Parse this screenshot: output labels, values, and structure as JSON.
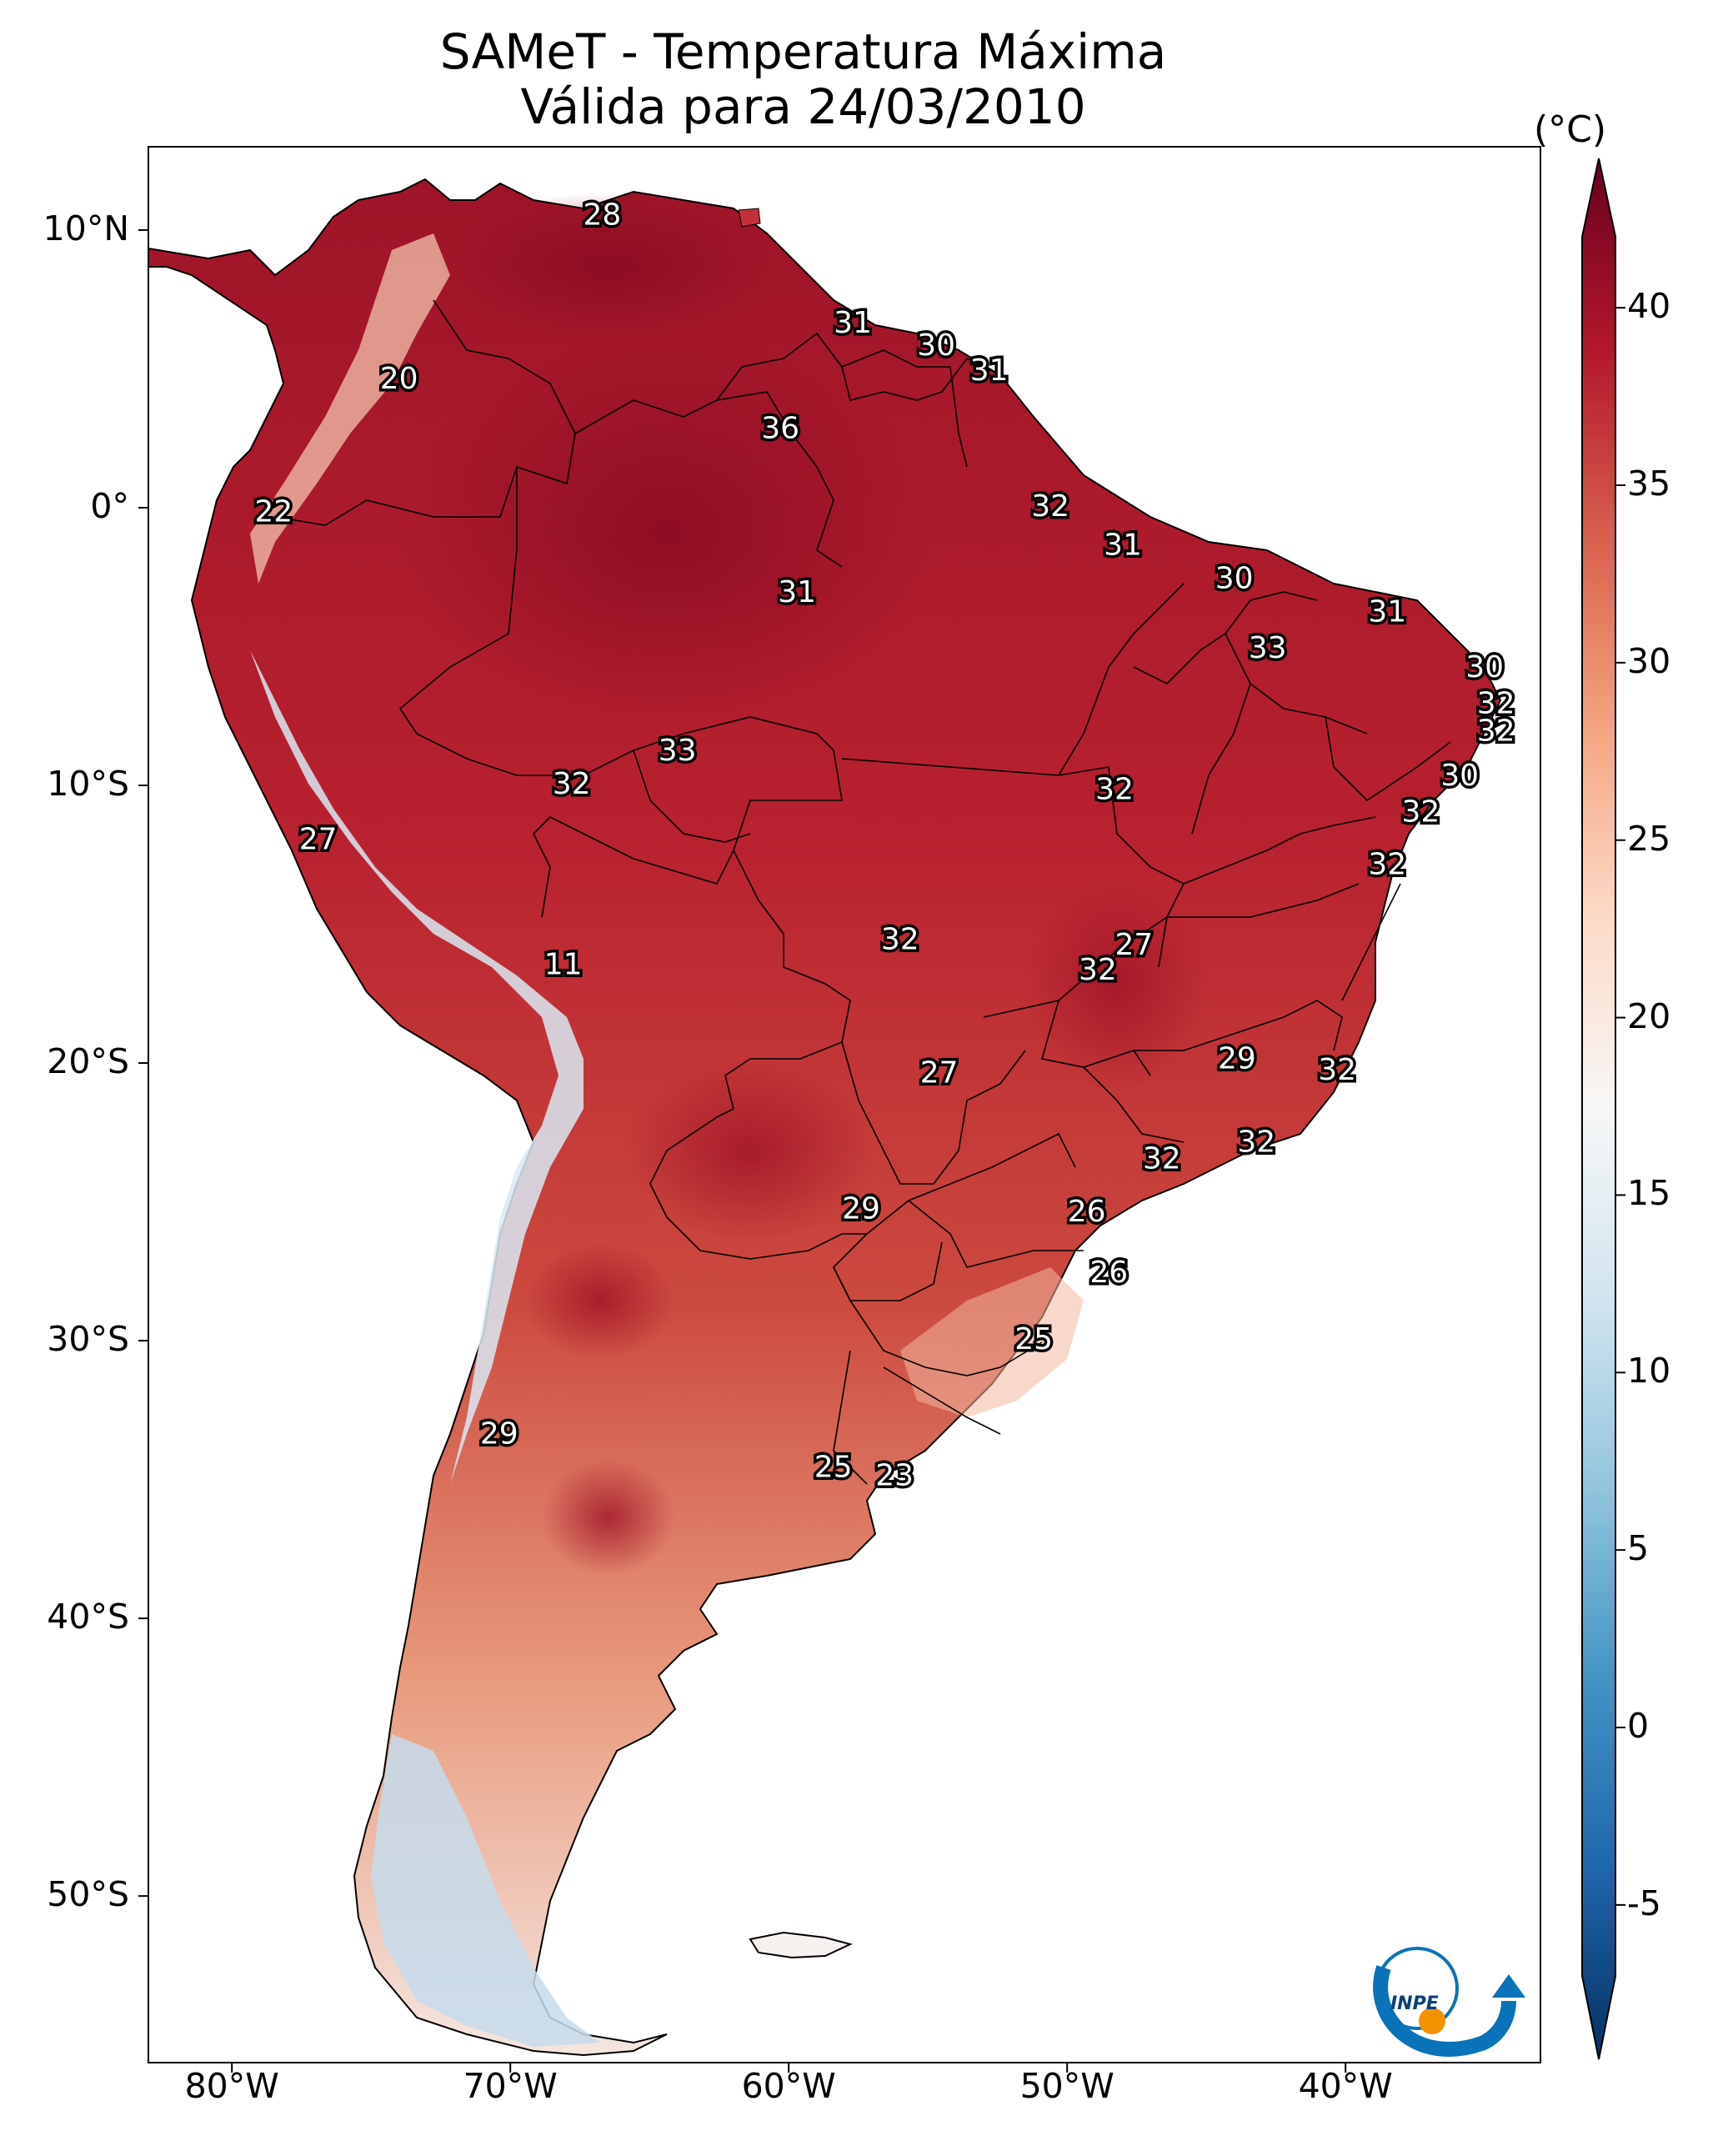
{
  "title": {
    "line1": "SAMeT - Temperatura Máxima",
    "line2": "Válida para 24/03/2010"
  },
  "map": {
    "lat_ticks": [
      "10°N",
      "0°",
      "10°S",
      "20°S",
      "30°S",
      "40°S",
      "50°S"
    ],
    "lon_ticks": [
      "80°W",
      "70°W",
      "60°W",
      "50°W",
      "40°W"
    ],
    "extent": {
      "lon_min": -83,
      "lon_max": -33,
      "lat_min": -56,
      "lat_max": 13
    },
    "station_labels": [
      {
        "text": "28",
        "lon": -66.7,
        "lat": 10.5
      },
      {
        "text": "31",
        "lon": -57.7,
        "lat": 6.6
      },
      {
        "text": "30",
        "lon": -54.7,
        "lat": 5.8
      },
      {
        "text": "31",
        "lon": -52.8,
        "lat": 4.9
      },
      {
        "text": "20",
        "lon": -74.0,
        "lat": 4.6
      },
      {
        "text": "36",
        "lon": -60.3,
        "lat": 2.8
      },
      {
        "text": "32",
        "lon": -50.6,
        "lat": 0.0
      },
      {
        "text": "22",
        "lon": -78.5,
        "lat": -0.2
      },
      {
        "text": "31",
        "lon": -48.0,
        "lat": -1.4
      },
      {
        "text": "30",
        "lon": -44.0,
        "lat": -2.6
      },
      {
        "text": "31",
        "lon": -59.7,
        "lat": -3.1
      },
      {
        "text": "31",
        "lon": -38.5,
        "lat": -3.8
      },
      {
        "text": "33",
        "lon": -42.8,
        "lat": -5.1
      },
      {
        "text": "30",
        "lon": -35.0,
        "lat": -5.8
      },
      {
        "text": "32",
        "lon": -34.6,
        "lat": -7.1
      },
      {
        "text": "32",
        "lon": -34.6,
        "lat": -8.1
      },
      {
        "text": "33",
        "lon": -64.0,
        "lat": -8.8
      },
      {
        "text": "30",
        "lon": -35.9,
        "lat": -9.7
      },
      {
        "text": "32",
        "lon": -67.8,
        "lat": -10.0
      },
      {
        "text": "32",
        "lon": -48.3,
        "lat": -10.2
      },
      {
        "text": "32",
        "lon": -37.3,
        "lat": -11.0
      },
      {
        "text": "27",
        "lon": -76.9,
        "lat": -12.0
      },
      {
        "text": "32",
        "lon": -38.5,
        "lat": -12.9
      },
      {
        "text": "27",
        "lon": -47.6,
        "lat": -15.8
      },
      {
        "text": "32",
        "lon": -56.0,
        "lat": -15.6
      },
      {
        "text": "32",
        "lon": -48.9,
        "lat": -16.7
      },
      {
        "text": "11",
        "lon": -68.1,
        "lat": -16.5
      },
      {
        "text": "29",
        "lon": -43.9,
        "lat": -19.9
      },
      {
        "text": "32",
        "lon": -40.3,
        "lat": -20.3
      },
      {
        "text": "27",
        "lon": -54.6,
        "lat": -20.4
      },
      {
        "text": "32",
        "lon": -43.2,
        "lat": -22.9
      },
      {
        "text": "32",
        "lon": -46.6,
        "lat": -23.5
      },
      {
        "text": "29",
        "lon": -57.4,
        "lat": -25.3
      },
      {
        "text": "26",
        "lon": -49.3,
        "lat": -25.4
      },
      {
        "text": "26",
        "lon": -48.5,
        "lat": -27.6
      },
      {
        "text": "25",
        "lon": -51.2,
        "lat": -30.0
      },
      {
        "text": "29",
        "lon": -70.4,
        "lat": -33.4
      },
      {
        "text": "25",
        "lon": -58.4,
        "lat": -34.6
      },
      {
        "text": "23",
        "lon": -56.2,
        "lat": -34.9
      }
    ]
  },
  "colorbar": {
    "unit": "(°C)",
    "ticks": [
      "40",
      "35",
      "30",
      "25",
      "20",
      "15",
      "10",
      "5",
      "0",
      "-5"
    ],
    "min": -7,
    "max": 42,
    "stops": [
      "#053061",
      "#2166ac",
      "#4393c3",
      "#92c5de",
      "#d1e5f0",
      "#f7f7f7",
      "#fddbc7",
      "#f4a582",
      "#d6604d",
      "#b2182b",
      "#67001f"
    ]
  },
  "logo": {
    "text": "INPE",
    "accent_color": "#f39200",
    "main_color": "#0a72b8"
  }
}
